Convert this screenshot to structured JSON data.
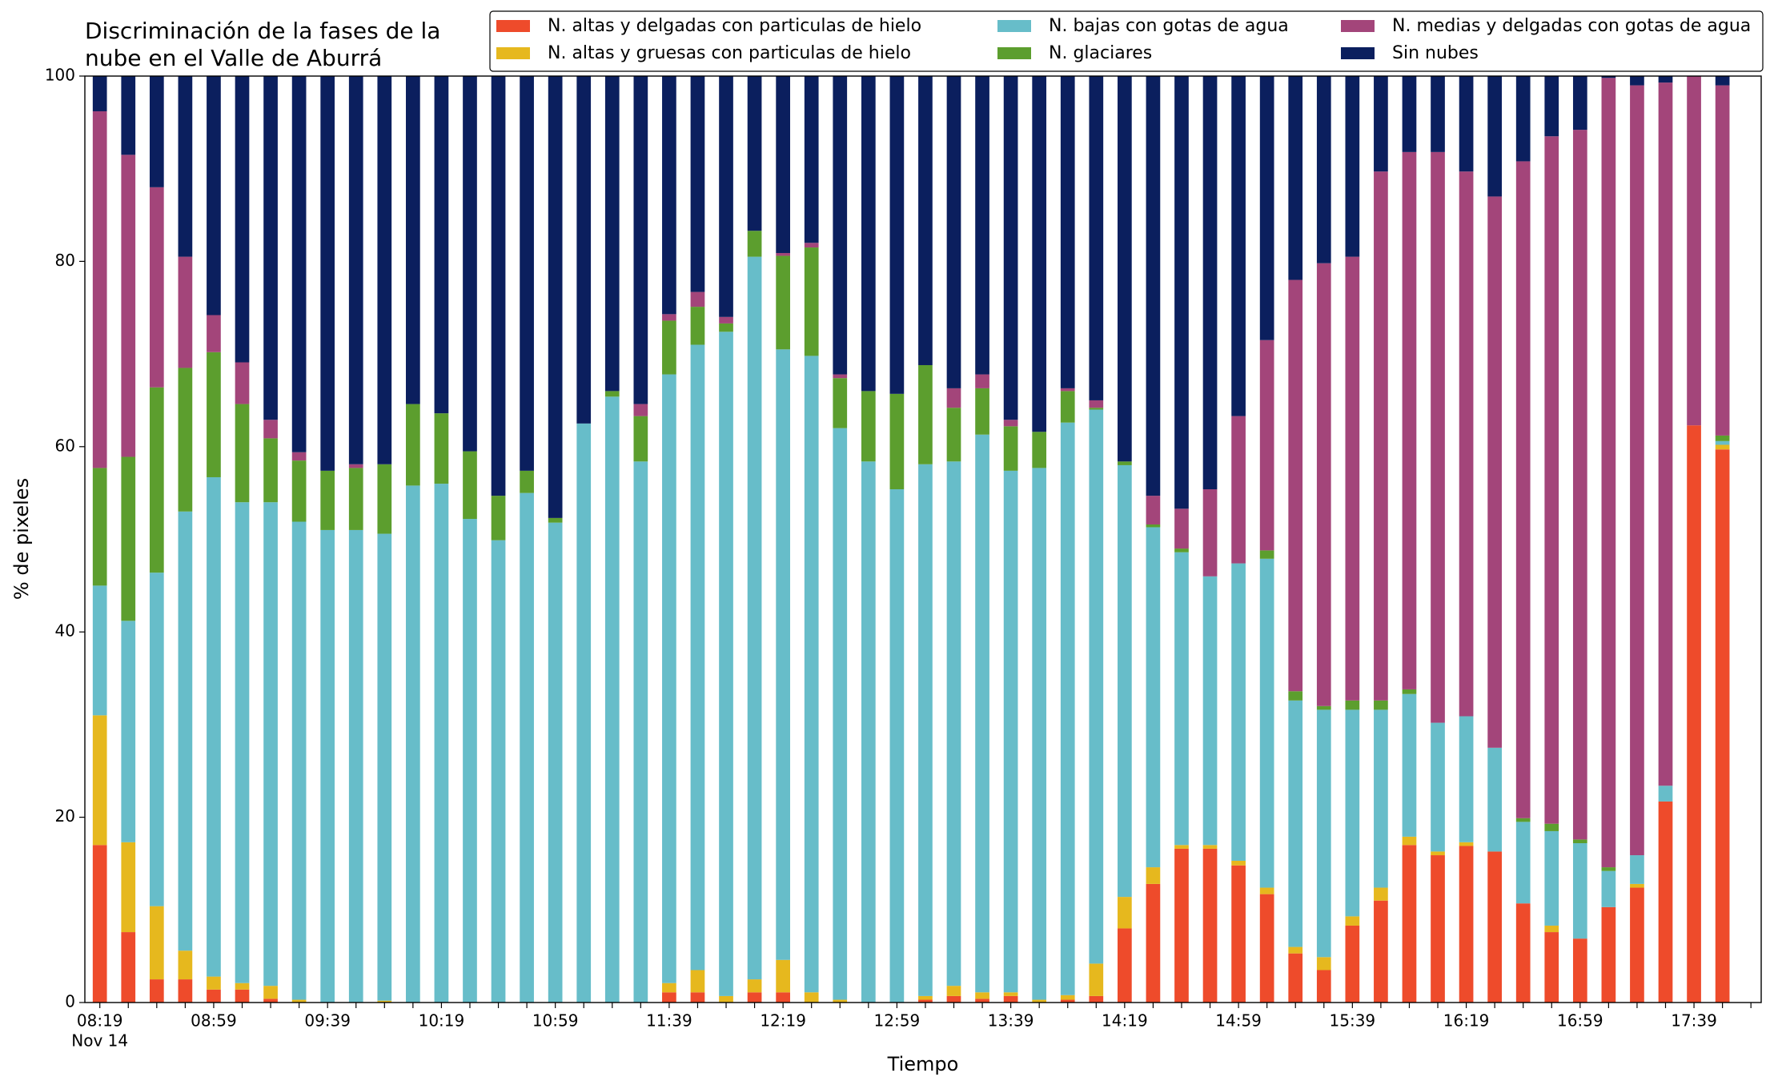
{
  "chart_data": {
    "type": "stacked_bar",
    "title": [
      "Discriminación de la fases de la",
      "nube en el Valle de Aburrá"
    ],
    "xlabel": "Tiempo",
    "ylabel": "% de pixeles",
    "x_sublabel": "Nov 14",
    "categories": [
      "08:19",
      null,
      null,
      null,
      "08:59",
      null,
      null,
      null,
      "09:39",
      null,
      null,
      null,
      "10:19",
      null,
      null,
      null,
      "10:59",
      null,
      null,
      null,
      "11:39",
      null,
      null,
      null,
      "12:19",
      null,
      null,
      null,
      "12:59",
      null,
      null,
      null,
      "13:39",
      null,
      null,
      null,
      "14:19",
      null,
      null,
      null,
      "14:59",
      null,
      null,
      null,
      "15:39",
      null,
      null,
      null,
      "16:19",
      null,
      null,
      null,
      "16:59",
      null,
      null,
      null,
      "17:39",
      null
    ],
    "ylim": [
      0,
      100
    ],
    "yticks": [
      0,
      20,
      40,
      60,
      80,
      100
    ],
    "grid": false,
    "legend": "top",
    "series": [
      {
        "name": "N. altas y delgadas con particulas de hielo",
        "color": "#ee4b2b",
        "values": [
          17,
          7.6,
          2.5,
          2.5,
          1.4,
          1.4,
          0.4,
          0,
          0,
          0,
          0,
          0,
          0,
          0,
          0,
          0,
          0,
          0,
          0,
          0,
          1.1,
          1.1,
          0,
          1.1,
          1.1,
          0,
          0,
          0,
          0,
          0.3,
          0.7,
          0.4,
          0.7,
          0,
          0.3,
          0.7,
          8,
          12.8,
          16.6,
          16.6,
          14.8,
          11.7,
          5.3,
          3.5,
          8.3,
          11,
          17,
          15.9,
          16.9,
          16.3,
          10.7,
          7.6,
          6.9,
          10.3,
          12.4,
          21.7,
          62.3,
          59.7
        ]
      },
      {
        "name": "N. altas y gruesas con particulas de hielo",
        "color": "#e6b81e",
        "values": [
          14,
          9.7,
          7.9,
          3.1,
          1.4,
          0.7,
          1.4,
          0.3,
          0,
          0,
          0.2,
          0,
          0,
          0,
          0,
          0,
          0,
          0,
          0,
          0,
          1,
          2.4,
          0.7,
          1.4,
          3.5,
          1.1,
          0.3,
          0,
          0,
          0.4,
          1.1,
          0.7,
          0.4,
          0.3,
          0.5,
          3.5,
          3.4,
          1.8,
          0.4,
          0.4,
          0.5,
          0.7,
          0.7,
          1.4,
          1,
          1.4,
          0.9,
          0.4,
          0.4,
          0,
          0,
          0.7,
          0,
          0,
          0.4,
          0,
          0,
          0.5
        ]
      },
      {
        "name": "N. bajas con gotas de agua",
        "color": "#67bdc9",
        "values": [
          14,
          23.9,
          36,
          47.4,
          53.9,
          51.9,
          52.2,
          51.6,
          51,
          51,
          50.4,
          55.8,
          56,
          52.2,
          49.9,
          55,
          51.8,
          62.5,
          65.4,
          58.4,
          65.7,
          67.5,
          71.7,
          78,
          65.9,
          68.7,
          61.7,
          58.4,
          55.4,
          57.4,
          56.6,
          60.2,
          56.3,
          57.4,
          61.8,
          59.8,
          46.6,
          36.7,
          31.6,
          29,
          32.1,
          35.5,
          26.6,
          26.7,
          22.3,
          19.2,
          15.4,
          13.9,
          13.6,
          11.2,
          8.8,
          10.2,
          10.3,
          3.9,
          3.1,
          1.7,
          0,
          0.4
        ]
      },
      {
        "name": "N. glaciares",
        "color": "#5c9e2e",
        "values": [
          12.7,
          17.7,
          20,
          15.5,
          13.5,
          10.6,
          6.9,
          6.6,
          6.4,
          6.7,
          7.5,
          8.8,
          7.6,
          7.3,
          4.8,
          2.4,
          0.5,
          0,
          0.6,
          4.9,
          5.8,
          4.1,
          0.9,
          2.8,
          10.1,
          11.7,
          5.4,
          7.6,
          10.3,
          10.7,
          5.8,
          5,
          4.8,
          3.9,
          3.4,
          0.2,
          0.4,
          0.3,
          0.4,
          0,
          0,
          0.9,
          1,
          0.4,
          1,
          1,
          0.5,
          0,
          0,
          0,
          0.4,
          0.8,
          0.4,
          0.4,
          0,
          0,
          0,
          0.6
        ]
      },
      {
        "name": "N. medias y delgadas con gotas de agua",
        "color": "#a3457a",
        "values": [
          38.5,
          32.6,
          21.6,
          12,
          4,
          4.5,
          2,
          0.9,
          0,
          0.4,
          0,
          0,
          0,
          0,
          0,
          0,
          0,
          0,
          0,
          1.3,
          0.7,
          1.6,
          0.7,
          0,
          0.3,
          0.5,
          0.4,
          0,
          0,
          0,
          2.1,
          1.5,
          0.7,
          0,
          0.3,
          0.8,
          0,
          3.1,
          4.3,
          9.4,
          15.9,
          22.7,
          44.4,
          47.8,
          47.9,
          57.1,
          58,
          61.6,
          58.8,
          59.5,
          70.9,
          74.2,
          76.6,
          85.2,
          83.1,
          75.9,
          37.7,
          37.8
        ]
      },
      {
        "name": "Sin nubes",
        "color": "#0b1f5e",
        "values": [
          3.8,
          8.5,
          12,
          19.5,
          25.8,
          30.9,
          37.1,
          40.6,
          42.6,
          41.9,
          41.9,
          35.4,
          36.4,
          40.5,
          45.3,
          42.6,
          47.7,
          37.5,
          34,
          35.4,
          25.7,
          23.3,
          26,
          16.7,
          19.1,
          18,
          32.2,
          34,
          34.3,
          31.2,
          33.7,
          32.2,
          37.1,
          38.4,
          33.7,
          35,
          41.6,
          45.3,
          46.7,
          44.6,
          36.7,
          28.5,
          22,
          20.2,
          19.5,
          10.3,
          8.2,
          8.2,
          10.3,
          13,
          9.2,
          6.5,
          5.8,
          0.2,
          1,
          0.7,
          0,
          1
        ]
      }
    ]
  }
}
